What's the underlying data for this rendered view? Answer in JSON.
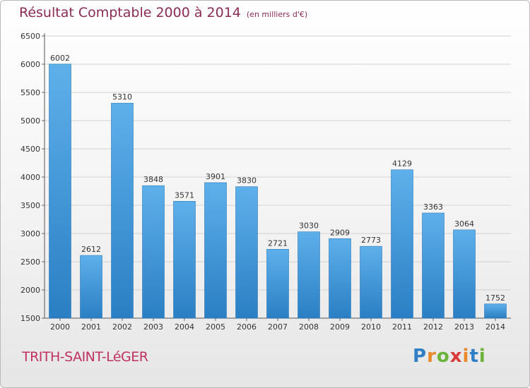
{
  "title": "Résultat Comptable 2000 à 2014",
  "unit_label": "(en milliers d'€)",
  "location": "TRITH-SAINT-LéGER",
  "brand": {
    "letters": [
      "P",
      "r",
      "o",
      "x",
      "i",
      "t",
      "i"
    ],
    "colors": [
      "#2f7fc8",
      "#e9892b",
      "#6bb33b",
      "#d93a3a",
      "#e9892b",
      "#2f7fc8",
      "#6bb33b"
    ]
  },
  "colors": {
    "bar_top": "#5eb0ea",
    "bar_bottom": "#2a7fc4",
    "title": "#8c2b52",
    "location": "#c0325f"
  },
  "chart_data": {
    "type": "bar",
    "categories": [
      "2000",
      "2001",
      "2002",
      "2003",
      "2004",
      "2005",
      "2006",
      "2007",
      "2008",
      "2009",
      "2010",
      "2011",
      "2012",
      "2013",
      "2014"
    ],
    "values": [
      6002,
      2612,
      5310,
      3848,
      3571,
      3901,
      3830,
      2721,
      3030,
      2909,
      2773,
      4129,
      3363,
      3064,
      1752
    ],
    "yticks": [
      1500,
      2000,
      2500,
      3000,
      3500,
      4000,
      4500,
      5000,
      5500,
      6000,
      6500
    ],
    "ylim": [
      1500,
      6500
    ],
    "grid": true
  }
}
